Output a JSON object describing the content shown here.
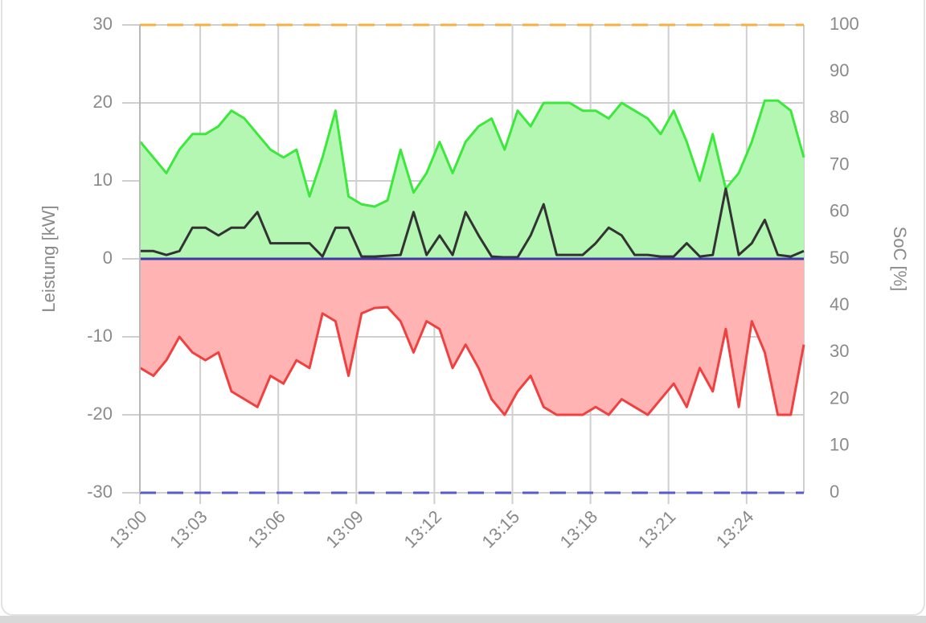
{
  "chart_data": {
    "type": "line",
    "y_label": "Leistung [kW]",
    "y2_label": "SoC [%]",
    "x": [
      0.7,
      1.2,
      1.7,
      2.2,
      2.7,
      3.2,
      3.7,
      4.2,
      4.7,
      5.2,
      5.7,
      6.2,
      6.7,
      7.2,
      7.7,
      8.2,
      8.7,
      9.2,
      9.7,
      10.2,
      10.7,
      11.2,
      11.7,
      12.2,
      12.7,
      13.2,
      13.7,
      14.2,
      14.7,
      15.2,
      15.7,
      16.2,
      16.7,
      17.2,
      17.7,
      18.2,
      18.7,
      19.2,
      19.7,
      20.2,
      20.7,
      21.2,
      21.7,
      22.2,
      22.7,
      23.2,
      23.7,
      24.2,
      24.7,
      25.2,
      25.7,
      26.2
    ],
    "xlim": [
      0.68,
      26.2
    ],
    "xticks": [
      {
        "value": 0.68,
        "label": "13:00"
      },
      {
        "value": 3,
        "label": "13:03"
      },
      {
        "value": 6,
        "label": "13:06"
      },
      {
        "value": 9,
        "label": "13:09"
      },
      {
        "value": 12,
        "label": "13:12"
      },
      {
        "value": 15,
        "label": "13:15"
      },
      {
        "value": 18,
        "label": "13:18"
      },
      {
        "value": 21,
        "label": "13:21"
      },
      {
        "value": 24,
        "label": "13:24"
      }
    ],
    "ylim": [
      -30,
      30
    ],
    "yticks": [
      -30,
      -20,
      -10,
      0,
      10,
      20,
      30
    ],
    "y2lim": [
      0,
      100
    ],
    "y2ticks": [
      0,
      10,
      20,
      30,
      40,
      50,
      60,
      70,
      80,
      90,
      100
    ],
    "grid": true,
    "series": [
      {
        "color": "#3de83d",
        "fill": "#b3f7b3",
        "values": [
          15,
          13,
          11,
          14,
          16,
          16,
          17,
          19,
          18,
          16,
          14,
          13,
          14,
          8,
          13,
          19,
          8,
          7,
          6.7,
          7.5,
          14,
          8.5,
          11,
          15,
          11,
          15,
          17,
          18,
          14,
          19,
          17,
          20,
          20,
          20,
          19,
          19,
          18,
          20,
          19,
          18,
          16,
          19,
          15,
          10,
          16,
          9,
          11,
          15,
          20.3,
          20.3,
          19,
          13
        ]
      },
      {
        "color": "#f04040",
        "fill": "#ffb3b3",
        "values": [
          -14,
          -15,
          -13,
          -10,
          -12,
          -13,
          -12,
          -17,
          -18,
          -19,
          -15,
          -16,
          -13,
          -14,
          -7,
          -8,
          -15,
          -7,
          -6.3,
          -6.2,
          -8,
          -12,
          -8,
          -9,
          -14,
          -11,
          -14,
          -18,
          -20,
          -17,
          -15,
          -19,
          -20,
          -20,
          -20,
          -19,
          -20,
          -18,
          -19,
          -20,
          -18,
          -16,
          -19,
          -14,
          -17,
          -9,
          -19,
          -8,
          -12,
          -20,
          -20,
          -11
        ]
      },
      {
        "color": "#333333",
        "values": [
          1,
          1,
          0.5,
          1,
          4,
          4,
          3,
          4,
          4,
          6,
          2,
          2,
          2,
          2,
          0.3,
          4,
          4,
          0.3,
          0.3,
          0.4,
          0.5,
          6,
          0.5,
          3,
          0.5,
          6,
          3,
          0.3,
          0.2,
          0.2,
          3,
          7,
          0.5,
          0.5,
          0.5,
          2,
          4,
          3,
          0.5,
          0.5,
          0.3,
          0.3,
          2,
          0.3,
          0.5,
          9,
          0.5,
          2,
          5,
          0.5,
          0.3,
          1
        ]
      },
      {
        "color": "#3a3aa8",
        "x": [
          0.68,
          26.2
        ],
        "values": [
          0,
          0
        ]
      },
      {
        "color": "#f5b041",
        "dash": true,
        "axis": "y2",
        "x": [
          0.68,
          26.2
        ],
        "values": [
          100,
          100
        ]
      },
      {
        "color": "#5a5ad0",
        "dash": true,
        "axis": "y2",
        "x": [
          0.68,
          26.2
        ],
        "values": [
          0,
          0
        ]
      }
    ]
  }
}
